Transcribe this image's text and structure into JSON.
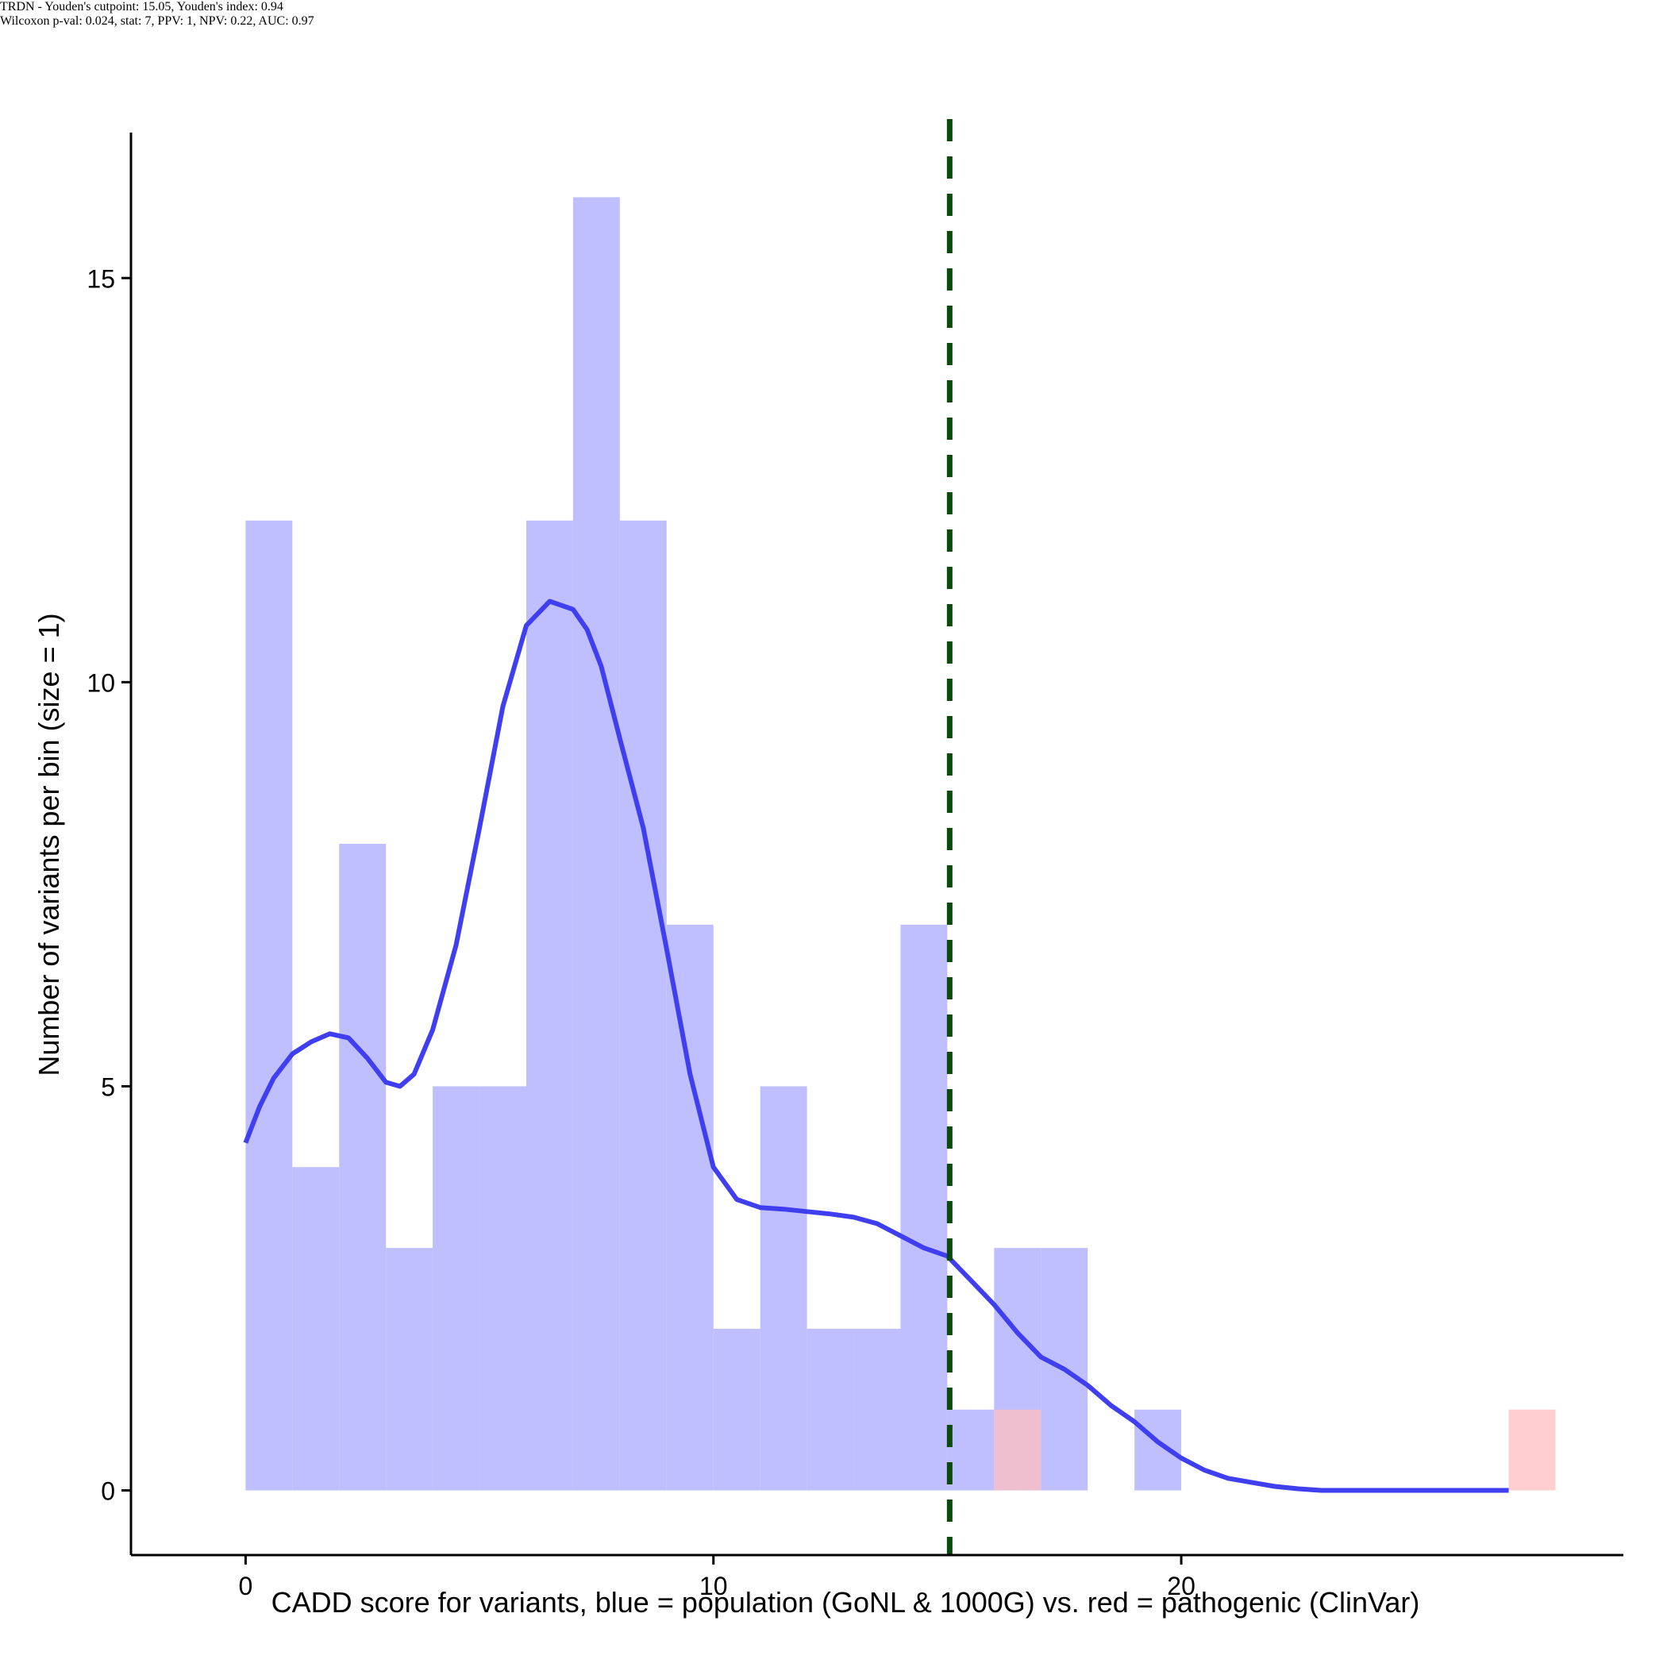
{
  "chart_data": {
    "type": "bar",
    "title": "TRDN - Youden's cutpoint: 15.05, Youden's index: 0.94",
    "subtitle": "Wilcoxon p-val: 0.024, stat: 7, PPV: 1, NPV: 0.22, AUC: 0.97",
    "xlabel": "CADD score for variants, blue = population (GoNL & 1000G) vs. red = pathogenic (ClinVar)",
    "ylabel": "Number of variants per bin (size = 1)",
    "xlim": [
      -2.45,
      29.45
    ],
    "ylim": [
      -0.8,
      16.8
    ],
    "x_ticks": [
      0,
      10,
      20
    ],
    "y_ticks": [
      0,
      5,
      10,
      15
    ],
    "bin_width": 1,
    "cutpoint": 15.05,
    "colors": {
      "population": "#bfbfff",
      "pathogenic": "#ffbfbf",
      "density": "#3f3fef",
      "cutpoint": "#0a4a0a"
    },
    "series": [
      {
        "name": "population",
        "bins": [
          {
            "x0": 0,
            "count": 12
          },
          {
            "x0": 1,
            "count": 4
          },
          {
            "x0": 2,
            "count": 8
          },
          {
            "x0": 3,
            "count": 3
          },
          {
            "x0": 4,
            "count": 5
          },
          {
            "x0": 5,
            "count": 5
          },
          {
            "x0": 6,
            "count": 12
          },
          {
            "x0": 7,
            "count": 16
          },
          {
            "x0": 8,
            "count": 12
          },
          {
            "x0": 9,
            "count": 7
          },
          {
            "x0": 10,
            "count": 2
          },
          {
            "x0": 11,
            "count": 5
          },
          {
            "x0": 12,
            "count": 2
          },
          {
            "x0": 13,
            "count": 2
          },
          {
            "x0": 14,
            "count": 7
          },
          {
            "x0": 15,
            "count": 1
          },
          {
            "x0": 16,
            "count": 3
          },
          {
            "x0": 17,
            "count": 3
          },
          {
            "x0": 19,
            "count": 1
          }
        ]
      },
      {
        "name": "pathogenic",
        "bins": [
          {
            "x0": 16,
            "count": 1
          },
          {
            "x0": 27,
            "count": 1
          }
        ]
      }
    ],
    "density": {
      "name": "population density",
      "x": [
        0,
        0.3,
        0.6,
        1,
        1.4,
        1.8,
        2.2,
        2.6,
        3,
        3.3,
        3.6,
        4,
        4.5,
        5,
        5.5,
        6,
        6.5,
        7,
        7.3,
        7.6,
        8,
        8.5,
        9,
        9.5,
        10,
        10.5,
        11,
        11.5,
        12,
        12.5,
        13,
        13.5,
        14,
        14.5,
        15,
        15.5,
        16,
        16.5,
        17,
        17.5,
        18,
        18.5,
        19,
        19.5,
        20,
        20.5,
        21,
        21.5,
        22,
        22.5,
        23,
        24,
        25,
        26,
        27
      ],
      "y": [
        4.3,
        4.75,
        5.1,
        5.4,
        5.55,
        5.65,
        5.6,
        5.35,
        5.05,
        5.0,
        5.15,
        5.7,
        6.75,
        8.2,
        9.7,
        10.7,
        11.0,
        10.9,
        10.65,
        10.2,
        9.3,
        8.2,
        6.7,
        5.15,
        4.0,
        3.6,
        3.5,
        3.48,
        3.45,
        3.42,
        3.38,
        3.3,
        3.15,
        3.0,
        2.9,
        2.6,
        2.3,
        1.95,
        1.65,
        1.5,
        1.3,
        1.05,
        0.85,
        0.6,
        0.4,
        0.25,
        0.15,
        0.1,
        0.05,
        0.02,
        0.0,
        0.0,
        0.0,
        0.0,
        0.0
      ]
    }
  }
}
